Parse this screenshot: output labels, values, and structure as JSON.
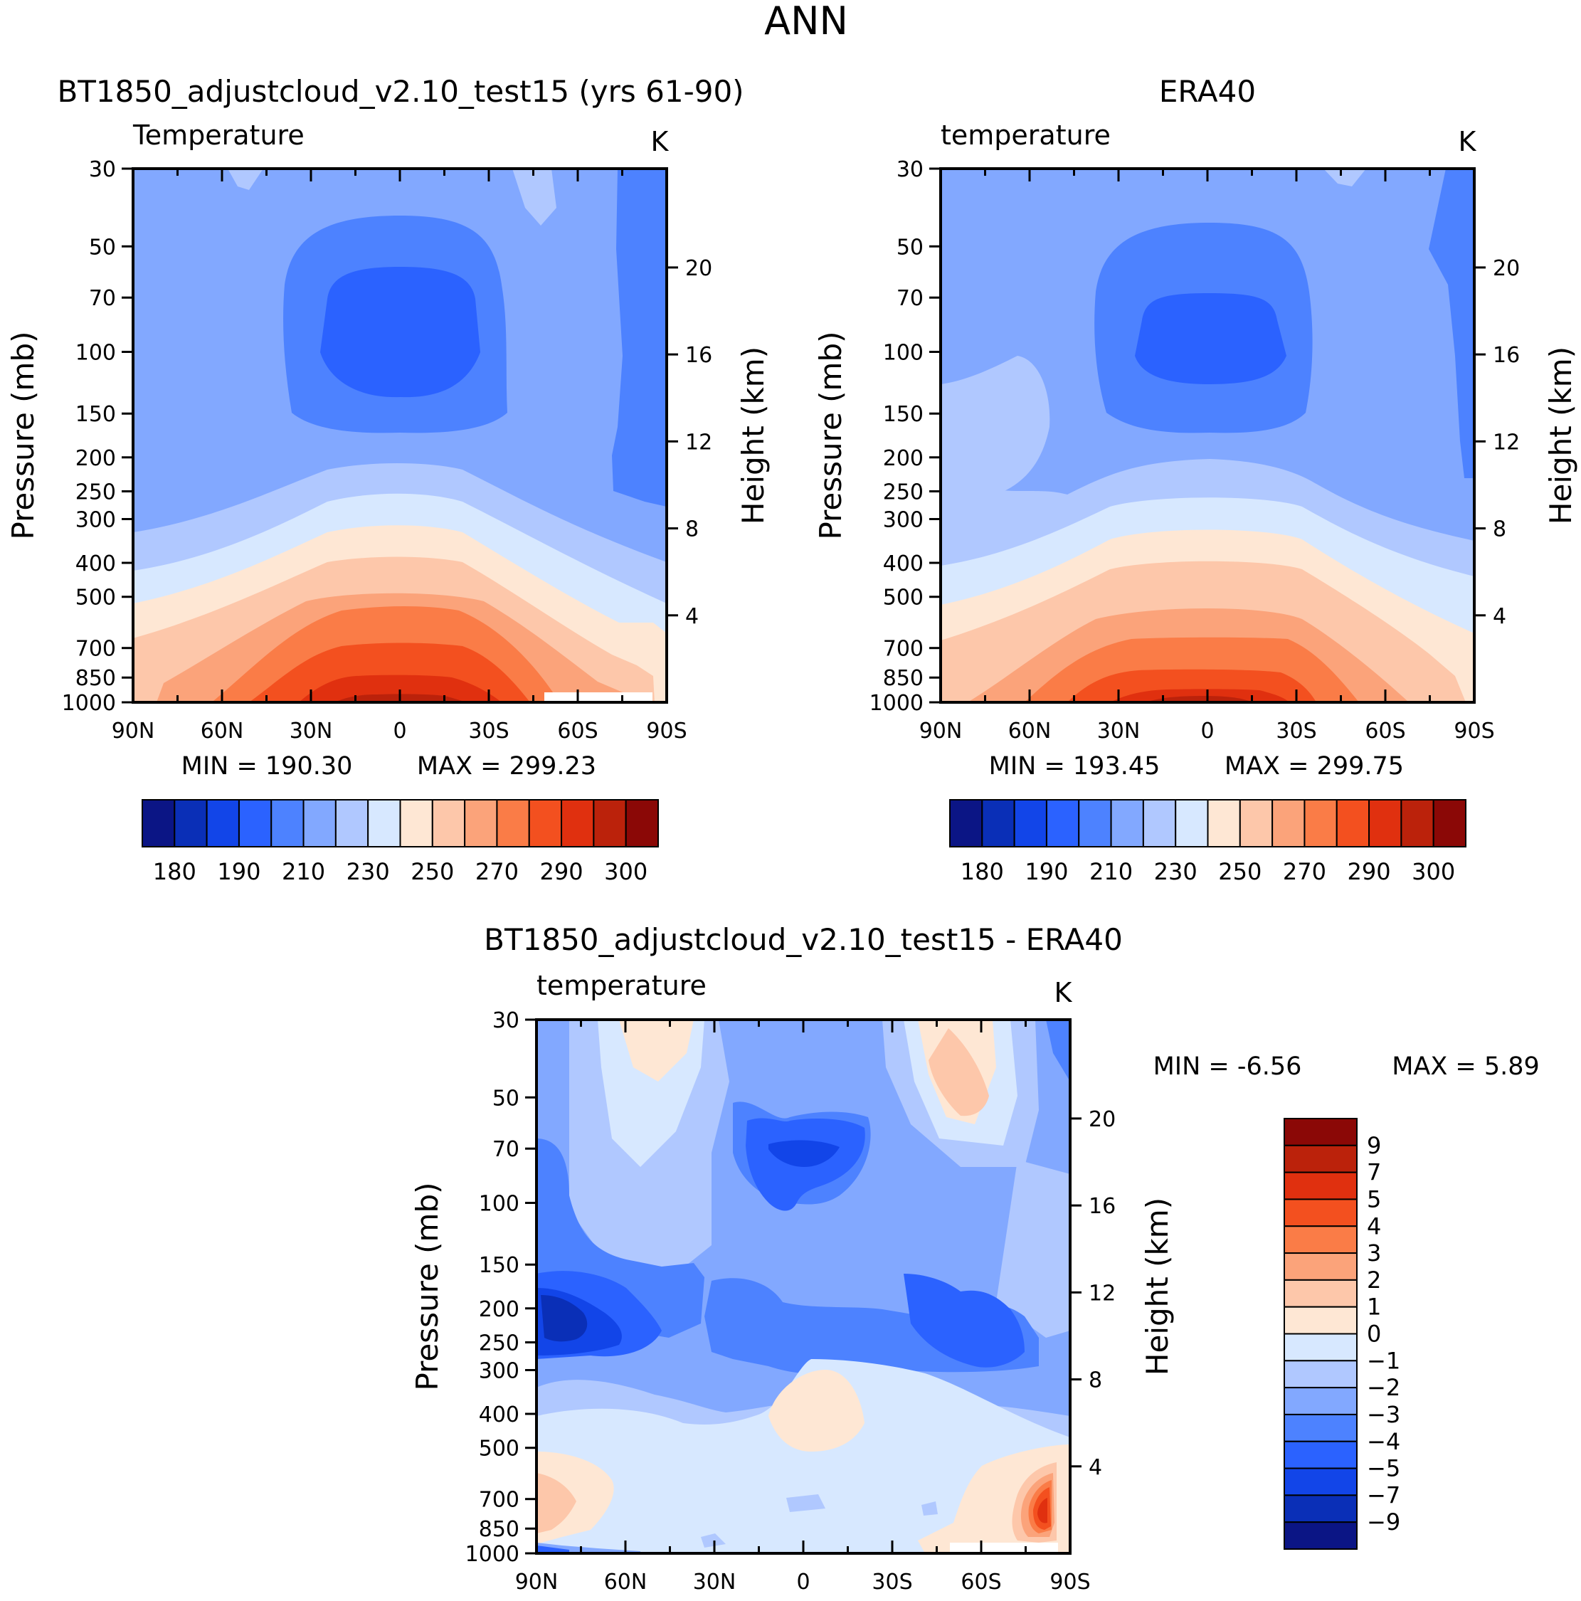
{
  "figure": {
    "title": "ANN"
  },
  "chart_data": [
    {
      "type": "contour",
      "title": "BT1850_adjustcloud_v2.10_test15 (yrs 61-90)",
      "variable": "Temperature",
      "units": "K",
      "ylabel": "Pressure (mb)",
      "y2label": "Height (km)",
      "x_ticks": [
        "90N",
        "60N",
        "30N",
        "0",
        "30S",
        "60S",
        "90S"
      ],
      "pressure_ticks": [
        30,
        50,
        70,
        100,
        150,
        200,
        250,
        300,
        400,
        500,
        700,
        850,
        1000
      ],
      "height_ticks": [
        20,
        16,
        12,
        8,
        4
      ],
      "min_text": "MIN = 190.30",
      "max_text": "MAX = 299.23",
      "min": 190.3,
      "max": 299.23,
      "colorbar": {
        "labels": [
          "180",
          "190",
          "210",
          "230",
          "250",
          "270",
          "290",
          "300"
        ],
        "colors": [
          "#0b1585",
          "#0a2fb7",
          "#1245e8",
          "#2b62ff",
          "#4d82ff",
          "#82a8ff",
          "#b0c8ff",
          "#d7e8ff",
          "#fee7d4",
          "#fdc7aa",
          "#fba37a",
          "#fa7c47",
          "#f3501f",
          "#e0300f",
          "#bb220b",
          "#8b0806"
        ]
      }
    },
    {
      "type": "contour",
      "title": "ERA40",
      "variable": "temperature",
      "units": "K",
      "ylabel": "Pressure (mb)",
      "y2label": "Height (km)",
      "x_ticks": [
        "90N",
        "60N",
        "30N",
        "0",
        "30S",
        "60S",
        "90S"
      ],
      "pressure_ticks": [
        30,
        50,
        70,
        100,
        150,
        200,
        250,
        300,
        400,
        500,
        700,
        850,
        1000
      ],
      "height_ticks": [
        20,
        16,
        12,
        8,
        4
      ],
      "min_text": "MIN = 193.45",
      "max_text": "MAX = 299.75",
      "min": 193.45,
      "max": 299.75,
      "colorbar": {
        "labels": [
          "180",
          "190",
          "210",
          "230",
          "250",
          "270",
          "290",
          "300"
        ],
        "colors": [
          "#0b1585",
          "#0a2fb7",
          "#1245e8",
          "#2b62ff",
          "#4d82ff",
          "#82a8ff",
          "#b0c8ff",
          "#d7e8ff",
          "#fee7d4",
          "#fdc7aa",
          "#fba37a",
          "#fa7c47",
          "#f3501f",
          "#e0300f",
          "#bb220b",
          "#8b0806"
        ]
      }
    },
    {
      "type": "contour",
      "title": "BT1850_adjustcloud_v2.10_test15 - ERA40",
      "variable": "temperature",
      "units": "K",
      "ylabel": "Pressure (mb)",
      "y2label": "Height (km)",
      "x_ticks": [
        "90N",
        "60N",
        "30N",
        "0",
        "30S",
        "60S",
        "90S"
      ],
      "pressure_ticks": [
        30,
        50,
        70,
        100,
        150,
        200,
        250,
        300,
        400,
        500,
        700,
        850,
        1000
      ],
      "height_ticks": [
        20,
        16,
        12,
        8,
        4
      ],
      "min_text": "MIN = -6.56",
      "max_text": "MAX = 5.89",
      "min": -6.56,
      "max": 5.89,
      "colorbar": {
        "labels": [
          "9",
          "7",
          "5",
          "4",
          "3",
          "2",
          "1",
          "0",
          "−1",
          "−2",
          "−3",
          "−4",
          "−5",
          "−7",
          "−9"
        ],
        "colors": [
          "#8b0806",
          "#bb220b",
          "#e0300f",
          "#f3501f",
          "#fa7c47",
          "#fba37a",
          "#fdc7aa",
          "#fee7d4",
          "#d7e8ff",
          "#b0c8ff",
          "#82a8ff",
          "#4d82ff",
          "#2b62ff",
          "#1245e8",
          "#0a2fb7",
          "#0b1585"
        ]
      }
    }
  ]
}
